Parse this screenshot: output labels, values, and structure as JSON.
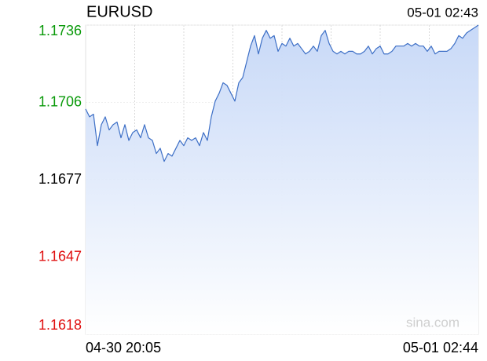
{
  "chart_data": {
    "type": "area",
    "title": "EURUSD",
    "timestamp": "05-01 02:43",
    "watermark": "sina.com",
    "categories": [
      "04-30 20:05",
      null,
      null,
      null,
      null,
      null,
      null,
      null,
      null,
      null,
      null,
      null,
      null,
      null,
      null,
      null,
      null,
      null,
      null,
      null,
      null,
      null,
      null,
      null,
      null,
      null,
      null,
      null,
      null,
      null,
      null,
      null,
      null,
      null,
      null,
      null,
      null,
      null,
      null,
      null,
      null,
      null,
      null,
      null,
      null,
      null,
      null,
      null,
      null,
      null,
      null,
      null,
      null,
      null,
      null,
      null,
      null,
      null,
      null,
      null,
      null,
      null,
      null,
      null,
      null,
      null,
      null,
      null,
      null,
      null,
      null,
      null,
      null,
      null,
      null,
      null,
      null,
      null,
      null,
      null,
      null,
      null,
      null,
      null,
      null,
      null,
      null,
      null,
      null,
      null,
      null,
      null,
      null,
      null,
      null,
      null,
      null,
      null,
      null,
      null,
      "05-01 02:44"
    ],
    "values": [
      1.1704,
      1.1701,
      1.1702,
      1.169,
      1.1698,
      1.1701,
      1.1696,
      1.1698,
      1.1699,
      1.1693,
      1.1698,
      1.1692,
      1.1695,
      1.1696,
      1.1693,
      1.1698,
      1.1693,
      1.1692,
      1.1687,
      1.1689,
      1.1684,
      1.1687,
      1.1686,
      1.1689,
      1.1692,
      1.169,
      1.1693,
      1.1692,
      1.1693,
      1.169,
      1.1695,
      1.1692,
      1.1701,
      1.1707,
      1.171,
      1.1714,
      1.1713,
      1.171,
      1.1707,
      1.1714,
      1.1716,
      1.1722,
      1.1728,
      1.1732,
      1.1725,
      1.1731,
      1.1734,
      1.1731,
      1.1732,
      1.1726,
      1.1729,
      1.1728,
      1.1731,
      1.1728,
      1.1729,
      1.1727,
      1.1725,
      1.1726,
      1.1728,
      1.1726,
      1.1732,
      1.1734,
      1.1729,
      1.1726,
      1.1725,
      1.1726,
      1.1725,
      1.1726,
      1.1726,
      1.1725,
      1.1725,
      1.1726,
      1.1728,
      1.1725,
      1.1727,
      1.1728,
      1.1725,
      1.1725,
      1.1726,
      1.1728,
      1.1728,
      1.1728,
      1.1729,
      1.1728,
      1.1729,
      1.1728,
      1.1728,
      1.1726,
      1.1728,
      1.1725,
      1.1726,
      1.1726,
      1.1726,
      1.1727,
      1.1729,
      1.1732,
      1.1731,
      1.1733,
      1.1734,
      1.1735,
      1.1736
    ],
    "color": "#3d6fc6",
    "fill_color": "#c5d7f7",
    "ylim": [
      1.1618,
      1.1736
    ],
    "yticks": [
      1.1618,
      {
        "value": 1.16475,
        "label": "1.1647"
      },
      1.1677,
      {
        "value": 1.17065,
        "label": "1.1706"
      },
      1.1736
    ],
    "up_color": "#0a9a0a",
    "down_color": "#e01010",
    "flat_color": "#000000",
    "grid": true
  }
}
